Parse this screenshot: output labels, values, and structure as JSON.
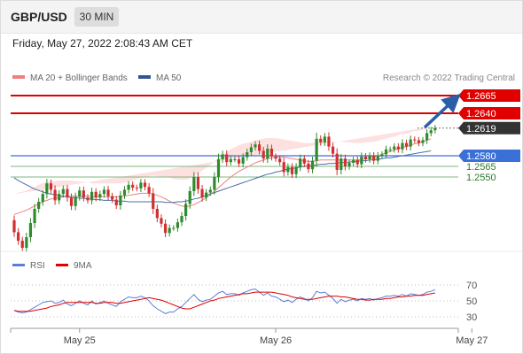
{
  "header": {
    "symbol": "GBP/USD",
    "timeframe": "30 MIN",
    "datetime": "Friday, May 27, 2022 2:08:43 AM CET"
  },
  "legend": {
    "ma20": "MA 20 + Bollinger Bands",
    "ma50": "MA 50",
    "rsi": "RSI",
    "ma9": "9MA"
  },
  "copyright": "Research © 2022 Trading Central",
  "colors": {
    "resistance": "#e00000",
    "support": "#2a7a2a",
    "pivot": "#3a70d8",
    "current": "#333333",
    "arrow": "#2a5fa8",
    "ma20": "#f08080",
    "ma50": "#4a6fa5",
    "rsi": "#5b7fd6",
    "ma9": "#e00000",
    "bull": "#2e8b2e",
    "bear": "#d03030",
    "band": "#fde0e0"
  },
  "chart_data": [
    {
      "type": "candlestick",
      "y_scale": {
        "ref": [
          1.2665,
          1.255
        ]
      },
      "levels": [
        {
          "label": "1.2665",
          "value": 1.2665,
          "kind": "resistance"
        },
        {
          "label": "1.2640",
          "value": 1.264,
          "kind": "resistance"
        },
        {
          "label": "1.2619",
          "value": 1.2619,
          "kind": "current"
        },
        {
          "label": "1.2580",
          "value": 1.258,
          "kind": "pivot"
        },
        {
          "label": "1.2565",
          "value": 1.2565,
          "kind": "support"
        },
        {
          "label": "1.2550",
          "value": 1.255,
          "kind": "support"
        }
      ],
      "x_labels": [
        "May 25",
        "May 26",
        "May 27"
      ],
      "x_label_index": [
        16,
        64,
        112
      ],
      "candles": [
        [
          1.2489,
          1.2472
        ],
        [
          1.2472,
          1.246
        ],
        [
          1.246,
          1.245
        ],
        [
          1.245,
          1.2465
        ],
        [
          1.2465,
          1.2485
        ],
        [
          1.2485,
          1.2505
        ],
        [
          1.2505,
          1.2515
        ],
        [
          1.2515,
          1.2526
        ],
        [
          1.2526,
          1.2541
        ],
        [
          1.2541,
          1.2532
        ],
        [
          1.2532,
          1.2517
        ],
        [
          1.2517,
          1.2526
        ],
        [
          1.2526,
          1.2533
        ],
        [
          1.2533,
          1.2521
        ],
        [
          1.2521,
          1.2509
        ],
        [
          1.2509,
          1.2522
        ],
        [
          1.2522,
          1.2531
        ],
        [
          1.2531,
          1.2521
        ],
        [
          1.2521,
          1.2517
        ],
        [
          1.2517,
          1.2529
        ],
        [
          1.2529,
          1.2521
        ],
        [
          1.2521,
          1.2526
        ],
        [
          1.2526,
          1.2532
        ],
        [
          1.2532,
          1.2523
        ],
        [
          1.2523,
          1.2518
        ],
        [
          1.2518,
          1.251
        ],
        [
          1.251,
          1.2524
        ],
        [
          1.2524,
          1.2532
        ],
        [
          1.2532,
          1.2539
        ],
        [
          1.2539,
          1.2535
        ],
        [
          1.2535,
          1.2534
        ],
        [
          1.2534,
          1.2542
        ],
        [
          1.2542,
          1.2536
        ],
        [
          1.2536,
          1.2527
        ],
        [
          1.2527,
          1.2505
        ],
        [
          1.2505,
          1.2492
        ],
        [
          1.2492,
          1.2484
        ],
        [
          1.2484,
          1.2471
        ],
        [
          1.2471,
          1.2478
        ],
        [
          1.2478,
          1.2478
        ],
        [
          1.2478,
          1.2486
        ],
        [
          1.2486,
          1.2495
        ],
        [
          1.2495,
          1.2512
        ],
        [
          1.2512,
          1.253
        ],
        [
          1.253,
          1.255
        ],
        [
          1.255,
          1.2533
        ],
        [
          1.2533,
          1.2521
        ],
        [
          1.2521,
          1.2528
        ],
        [
          1.2528,
          1.2532
        ],
        [
          1.2532,
          1.255
        ],
        [
          1.255,
          1.2575
        ],
        [
          1.2575,
          1.2582
        ],
        [
          1.2582,
          1.2571
        ],
        [
          1.2571,
          1.2575
        ],
        [
          1.2575,
          1.2575
        ],
        [
          1.2575,
          1.2569
        ],
        [
          1.2569,
          1.2578
        ],
        [
          1.2578,
          1.2585
        ],
        [
          1.2585,
          1.2592
        ],
        [
          1.2592,
          1.2596
        ],
        [
          1.2596,
          1.2587
        ],
        [
          1.2587,
          1.2576
        ],
        [
          1.2576,
          1.259
        ],
        [
          1.259,
          1.2579
        ],
        [
          1.2579,
          1.2576
        ],
        [
          1.2576,
          1.2571
        ],
        [
          1.2571,
          1.2557
        ],
        [
          1.2557,
          1.2564
        ],
        [
          1.2564,
          1.2554
        ],
        [
          1.2554,
          1.2564
        ],
        [
          1.2564,
          1.2576
        ],
        [
          1.2576,
          1.2569
        ],
        [
          1.2569,
          1.2561
        ],
        [
          1.2561,
          1.2573
        ],
        [
          1.2573,
          1.2604
        ],
        [
          1.2604,
          1.2599
        ],
        [
          1.2599,
          1.2607
        ],
        [
          1.2607,
          1.2593
        ],
        [
          1.2593,
          1.2583
        ],
        [
          1.2583,
          1.256
        ],
        [
          1.256,
          1.2576
        ],
        [
          1.2576,
          1.2565
        ],
        [
          1.2565,
          1.257
        ],
        [
          1.257,
          1.2574
        ],
        [
          1.2574,
          1.2568
        ],
        [
          1.2568,
          1.2579
        ],
        [
          1.2579,
          1.2575
        ],
        [
          1.2575,
          1.258
        ],
        [
          1.258,
          1.2573
        ],
        [
          1.2573,
          1.258
        ],
        [
          1.258,
          1.2582
        ],
        [
          1.2582,
          1.2589
        ],
        [
          1.2589,
          1.2589
        ],
        [
          1.2589,
          1.2593
        ],
        [
          1.2593,
          1.2589
        ],
        [
          1.2589,
          1.2598
        ],
        [
          1.2598,
          1.2593
        ],
        [
          1.2593,
          1.2603
        ],
        [
          1.2603,
          1.2602
        ],
        [
          1.2602,
          1.2598
        ],
        [
          1.2598,
          1.2602
        ],
        [
          1.2602,
          1.2612
        ],
        [
          1.2612,
          1.2616
        ],
        [
          1.2616,
          1.2619
        ]
      ],
      "ma20": [
        1.2497,
        1.2499,
        1.2501,
        1.2503,
        1.2506,
        1.2509,
        1.2512,
        1.2515,
        1.2517,
        1.2519,
        1.252,
        1.2521,
        1.2522,
        1.2523,
        1.2523,
        1.2523,
        1.2523,
        1.2523,
        1.2523,
        1.2522,
        1.2522,
        1.2522,
        1.2522,
        1.2522,
        1.2522,
        1.2522,
        1.2522,
        1.2523,
        1.2524,
        1.2525,
        1.2526,
        1.2527,
        1.2527,
        1.2527,
        1.2526,
        1.2524,
        1.2522,
        1.2519,
        1.2516,
        1.2513,
        1.2511,
        1.2509,
        1.2508,
        1.2509,
        1.2511,
        1.2514,
        1.2517,
        1.2521,
        1.2525,
        1.253,
        1.2535,
        1.254,
        1.2545,
        1.255,
        1.2554,
        1.2558,
        1.2561,
        1.2564,
        1.2567,
        1.257,
        1.2572,
        1.2574,
        1.2576,
        1.2577,
        1.2578,
        1.2578,
        1.2578,
        1.2577,
        1.2576,
        1.2575,
        1.2574,
        1.2573,
        1.2572,
        1.2572,
        1.2573,
        1.2574,
        1.2574,
        1.2574,
        1.2574,
        1.2574,
        1.2574,
        1.2574,
        1.2574,
        1.2574,
        1.2574,
        1.2575,
        1.2576,
        1.2577,
        1.2578,
        1.258,
        1.2582,
        1.2584,
        1.2586,
        1.2588,
        1.259,
        1.2592,
        1.2593,
        1.2595,
        1.2597,
        1.2598,
        1.26,
        1.2602,
        1.2604
      ],
      "band_width": [
        0.0029,
        0.0029,
        0.0028,
        0.0028,
        0.0028,
        0.0027,
        0.0027,
        0.0026,
        0.0026,
        0.0025,
        0.0024,
        0.0024,
        0.0023,
        0.0022,
        0.0022,
        0.0021,
        0.0021,
        0.002,
        0.002,
        0.0019,
        0.0019,
        0.0019,
        0.0019,
        0.0019,
        0.0019,
        0.0019,
        0.0019,
        0.0019,
        0.0019,
        0.002,
        0.0021,
        0.0022,
        0.0023,
        0.0024,
        0.0026,
        0.0027,
        0.0029,
        0.0031,
        0.0033,
        0.0034,
        0.0036,
        0.0037,
        0.0038,
        0.0039,
        0.004,
        0.0041,
        0.0042,
        0.0042,
        0.0042,
        0.0042,
        0.0042,
        0.0041,
        0.004,
        0.0039,
        0.0038,
        0.0037,
        0.0036,
        0.0034,
        0.0033,
        0.0032,
        0.0031,
        0.003,
        0.0029,
        0.0028,
        0.0027,
        0.0026,
        0.0025,
        0.0025,
        0.0025,
        0.0025,
        0.0025,
        0.0025,
        0.0026,
        0.0026,
        0.0026,
        0.0026,
        0.0026,
        0.0026,
        0.0026,
        0.0026,
        0.0026,
        0.0025,
        0.0025,
        0.0024,
        0.0024,
        0.0023,
        0.0023,
        0.0022,
        0.0022,
        0.0021,
        0.0021,
        0.002,
        0.002,
        0.0019,
        0.0019,
        0.0019,
        0.0018,
        0.0018,
        0.0018,
        0.0017,
        0.0017,
        0.0017,
        0.0017
      ],
      "ma50": [
        1.2549,
        1.2545,
        1.2542,
        1.2539,
        1.2536,
        1.2533,
        1.2531,
        1.2529,
        1.2527,
        1.2526,
        1.2525,
        1.2524,
        1.2523,
        1.2522,
        1.2521,
        1.2521,
        1.252,
        1.252,
        1.2519,
        1.2519,
        1.2518,
        1.2518,
        1.2517,
        1.2517,
        1.2517,
        1.2516,
        1.2516,
        1.2516,
        1.2515,
        1.2515,
        1.2515,
        1.2515,
        1.2515,
        1.2515,
        1.2515,
        1.2515,
        1.2515,
        1.2514,
        1.2514,
        1.2514,
        1.2515,
        1.2515,
        1.2516,
        1.2517,
        1.2519,
        1.252,
        1.2522,
        1.2524,
        1.2526,
        1.2528,
        1.253,
        1.2532,
        1.2534,
        1.2536,
        1.2538,
        1.254,
        1.2542,
        1.2544,
        1.2546,
        1.2548,
        1.255,
        1.2552,
        1.2554,
        1.2555,
        1.2557,
        1.2558,
        1.256,
        1.2561,
        1.2562,
        1.2563,
        1.2564,
        1.2565,
        1.2566,
        1.2566,
        1.2567,
        1.2568,
        1.2568,
        1.2569,
        1.2569,
        1.257,
        1.257,
        1.2571,
        1.2571,
        1.2572,
        1.2572,
        1.2573,
        1.2573,
        1.2574,
        1.2574,
        1.2575,
        1.2576,
        1.2577,
        1.2577,
        1.2578,
        1.2579,
        1.258,
        1.2581,
        1.2582,
        1.2583,
        1.2584,
        1.2585,
        1.2586,
        1.2587
      ]
    },
    {
      "type": "line",
      "y_ticks": [
        70,
        50,
        30
      ],
      "ylim": [
        30,
        70
      ],
      "series": [
        {
          "name": "RSI",
          "values": [
            38,
            36,
            35,
            36,
            39,
            42,
            45,
            48,
            49,
            50,
            47,
            48,
            51,
            46,
            44,
            47,
            50,
            47,
            45,
            50,
            46,
            48,
            50,
            47,
            45,
            43,
            49,
            52,
            55,
            54,
            54,
            56,
            54,
            50,
            44,
            40,
            37,
            34,
            36,
            36,
            40,
            43,
            48,
            53,
            58,
            52,
            49,
            51,
            52,
            56,
            60,
            62,
            58,
            59,
            59,
            57,
            60,
            62,
            64,
            65,
            61,
            57,
            60,
            56,
            55,
            52,
            49,
            51,
            48,
            52,
            55,
            53,
            50,
            54,
            62,
            60,
            61,
            57,
            53,
            47,
            52,
            49,
            51,
            52,
            50,
            53,
            52,
            53,
            51,
            53,
            54,
            56,
            56,
            57,
            56,
            58,
            56,
            59,
            58,
            57,
            58,
            61,
            62,
            64
          ]
        },
        {
          "name": "9MA",
          "values": [
            38,
            37,
            37,
            37,
            37,
            38,
            39,
            40,
            41,
            43,
            44,
            45,
            47,
            48,
            48,
            48,
            48,
            48,
            48,
            48,
            47,
            47,
            48,
            48,
            48,
            47,
            47,
            48,
            49,
            50,
            51,
            52,
            53,
            54,
            53,
            52,
            51,
            49,
            47,
            45,
            43,
            41,
            40,
            40,
            42,
            44,
            46,
            48,
            50,
            51,
            53,
            54,
            55,
            56,
            57,
            58,
            59,
            59,
            60,
            61,
            61,
            61,
            61,
            61,
            60,
            59,
            58,
            57,
            55,
            54,
            53,
            52,
            52,
            52,
            53,
            54,
            55,
            56,
            56,
            56,
            55,
            55,
            54,
            53,
            52,
            52,
            51,
            51,
            52,
            52,
            52,
            53,
            53,
            54,
            55,
            55,
            56,
            56,
            57,
            57,
            57,
            58,
            59,
            60
          ]
        }
      ],
      "x_labels": [
        "May 25",
        "May 26",
        "May 27"
      ]
    }
  ]
}
